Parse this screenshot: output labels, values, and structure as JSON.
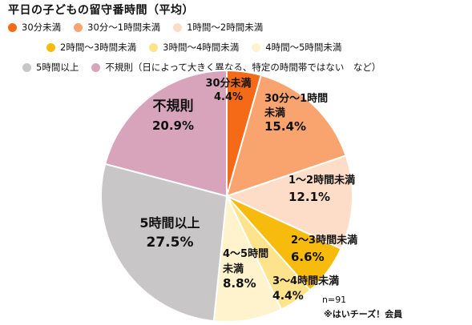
{
  "chart_title": "平日の子どもの留守番時間（平均）",
  "colors": {
    "lt30": "#f46a16",
    "m30_60": "#f9a46e",
    "h1_2": "#fddcc8",
    "h2_3": "#f7bb0e",
    "h3_4": "#fde38b",
    "h4_5": "#fef3cc",
    "h5plus": "#c9c6c7",
    "irregular": "#d7a4bc"
  },
  "chart_data": {
    "type": "pie",
    "title": "平日の子どもの留守番時間（平均）",
    "start": "12 o'clock, clockwise",
    "slices": [
      {
        "key": "lt30",
        "legend": "30分未満",
        "label": [
          "30分未満"
        ],
        "value": 4.4,
        "value_label": "4.4%"
      },
      {
        "key": "m30_60",
        "legend": "30分～1時間未満",
        "label": [
          "30分～1時間",
          "未満"
        ],
        "value": 15.4,
        "value_label": "15.4%"
      },
      {
        "key": "h1_2",
        "legend": "1時間～2時間未満",
        "label": [
          "1～2時間未満"
        ],
        "value": 12.1,
        "value_label": "12.1%"
      },
      {
        "key": "h2_3",
        "legend": "2時間～3時間未満",
        "label": [
          "2～3時間未満"
        ],
        "value": 6.6,
        "value_label": "6.6%"
      },
      {
        "key": "h3_4",
        "legend": "3時間～4時間未満",
        "label": [
          "3～4時間未満"
        ],
        "value": 4.4,
        "value_label": "4.4%"
      },
      {
        "key": "h4_5",
        "legend": "4時間～5時間未満",
        "label": [
          "4～5時間",
          "未満"
        ],
        "value": 8.8,
        "value_label": "8.8%"
      },
      {
        "key": "h5plus",
        "legend": "5時間以上",
        "label": [
          "5時間以上"
        ],
        "value": 27.5,
        "value_label": "27.5%"
      },
      {
        "key": "irregular",
        "legend": "不規則（日によって大きく異なる、特定の時間帯ではない　など）",
        "label": [
          "不規則"
        ],
        "value": 20.9,
        "value_label": "20.9%"
      }
    ],
    "legend_position": "top"
  },
  "notes": {
    "sample": "n=91",
    "source": "※はいチーズ！会員"
  }
}
